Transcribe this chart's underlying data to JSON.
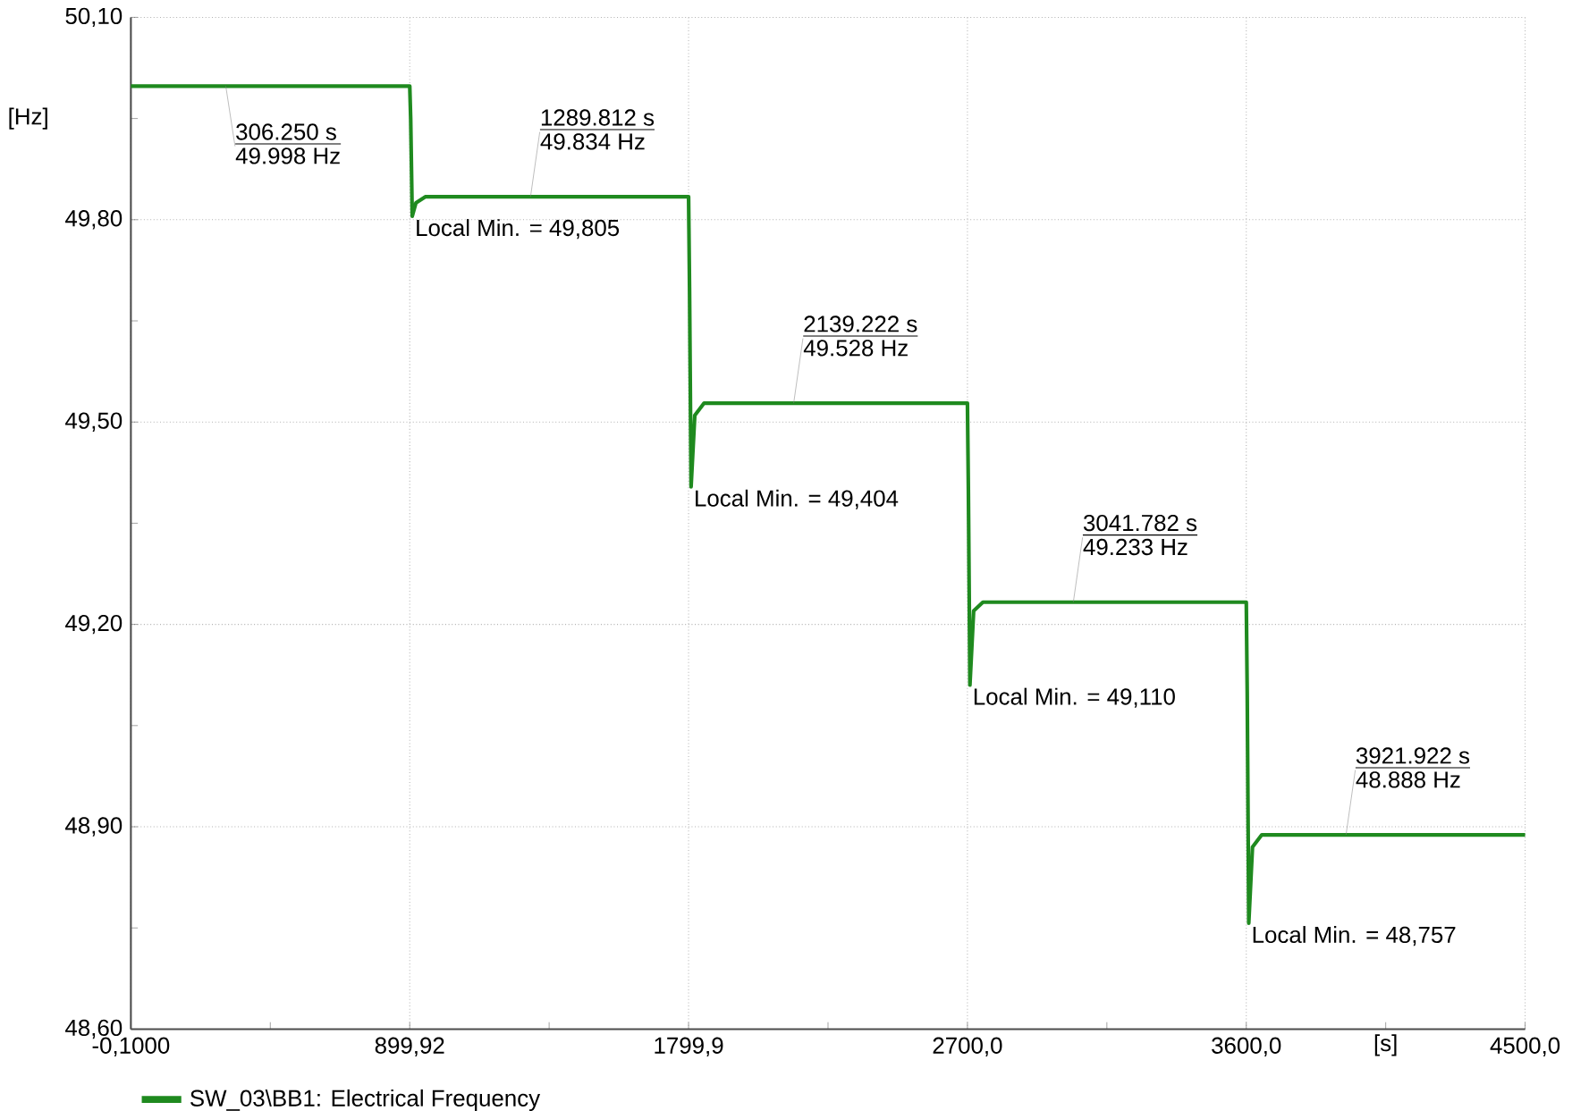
{
  "chart_data": {
    "type": "line",
    "xlabel": "[s]",
    "ylabel": "[Hz]",
    "x": [
      -0.1,
      900,
      903,
      908,
      920,
      950,
      1800,
      1803,
      1808,
      1820,
      1850,
      2700,
      2703,
      2708,
      2720,
      2750,
      3600,
      3603,
      3608,
      3620,
      3650,
      4500
    ],
    "series": [
      {
        "name": "SW_03\\BB1: Electrical Frequency",
        "color": "#1f8a1f",
        "values": [
          49.998,
          49.998,
          49.95,
          49.805,
          49.825,
          49.834,
          49.834,
          49.7,
          49.404,
          49.51,
          49.528,
          49.528,
          49.4,
          49.11,
          49.22,
          49.233,
          49.233,
          49.1,
          48.757,
          48.87,
          48.888,
          48.888
        ]
      }
    ],
    "xlim": [
      -0.1,
      4500
    ],
    "ylim": [
      48.6,
      50.1
    ],
    "xticks": [
      {
        "value": -0.1,
        "label": "-0,1000"
      },
      {
        "value": 449.91,
        "label": null
      },
      {
        "value": 899.92,
        "label": "899,92"
      },
      {
        "value": 1349.9,
        "label": null
      },
      {
        "value": 1799.9,
        "label": "1799,9"
      },
      {
        "value": 2250,
        "label": null
      },
      {
        "value": 2700,
        "label": "2700,0"
      },
      {
        "value": 3150,
        "label": null
      },
      {
        "value": 3600,
        "label": "3600,0"
      },
      {
        "value": 4050,
        "label": null
      },
      {
        "value": 4500,
        "label": "4500,0"
      }
    ],
    "yticks": [
      {
        "value": 48.6,
        "label": "48,60"
      },
      {
        "value": 48.75,
        "label": null
      },
      {
        "value": 48.9,
        "label": "48,90"
      },
      {
        "value": 49.05,
        "label": null
      },
      {
        "value": 49.2,
        "label": "49,20"
      },
      {
        "value": 49.35,
        "label": null
      },
      {
        "value": 49.5,
        "label": "49,50"
      },
      {
        "value": 49.65,
        "label": null
      },
      {
        "value": 49.8,
        "label": "49,80"
      },
      {
        "value": 49.95,
        "label": null
      },
      {
        "value": 50.1,
        "label": "50,10"
      }
    ],
    "annotations": [
      {
        "text": "306.250 s",
        "x": 306.25,
        "y": 49.998
      },
      {
        "text": "49.998 Hz",
        "x": 306.25,
        "y": 49.998
      },
      {
        "text": "1289.812 s",
        "x": 1289.812,
        "y": 49.834
      },
      {
        "text": "49.834 Hz",
        "x": 1289.812,
        "y": 49.834
      },
      {
        "text": "Local Min. = 49,805",
        "x": 908,
        "y": 49.805
      },
      {
        "text": "2139.222 s",
        "x": 2139.222,
        "y": 49.528
      },
      {
        "text": "49.528 Hz",
        "x": 2139.222,
        "y": 49.528
      },
      {
        "text": "Local Min. = 49,404",
        "x": 1808,
        "y": 49.404
      },
      {
        "text": "3041.782 s",
        "x": 3041.782,
        "y": 49.233
      },
      {
        "text": "49.233 Hz",
        "x": 3041.782,
        "y": 49.233
      },
      {
        "text": "Local Min. = 49,110",
        "x": 2708,
        "y": 49.11
      },
      {
        "text": "3921.922 s",
        "x": 3921.922,
        "y": 48.888
      },
      {
        "text": "48.888 Hz",
        "x": 3921.922,
        "y": 48.888
      },
      {
        "text": "Local Min. = 48,757",
        "x": 3608,
        "y": 48.757
      }
    ],
    "grid": true,
    "legend": "bottom left",
    "marker": "none",
    "line_style": "solid"
  }
}
